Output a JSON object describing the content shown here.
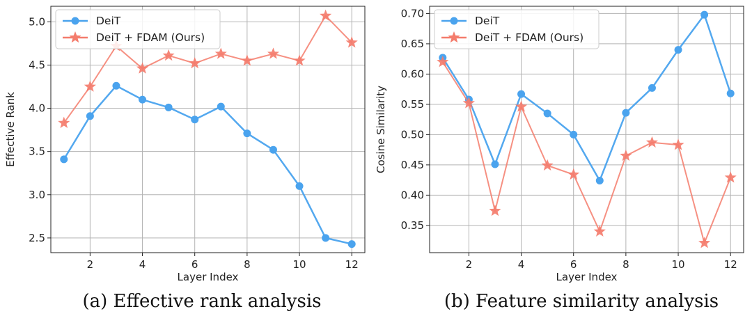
{
  "chart_data": [
    {
      "type": "line",
      "caption": "(a) Effective rank analysis",
      "title": "",
      "xlabel": "Layer Index",
      "ylabel": "Effective Rank",
      "xlim": [
        0.5,
        12.5
      ],
      "ylim": [
        2.33,
        5.18
      ],
      "xticks": [
        2,
        4,
        6,
        8,
        10,
        12
      ],
      "yticks": [
        2.5,
        3.0,
        3.5,
        4.0,
        4.5,
        5.0
      ],
      "ytick_labels": [
        "2.5",
        "3.0",
        "3.5",
        "4.0",
        "4.5",
        "5.0"
      ],
      "grid": true,
      "legend": "top-left",
      "x": [
        1,
        2,
        3,
        4,
        5,
        6,
        7,
        8,
        9,
        10,
        11,
        12
      ],
      "series": [
        {
          "name": "DeiT",
          "marker": "circle",
          "color": "#4aa3ee",
          "values": [
            3.41,
            3.91,
            4.26,
            4.1,
            4.01,
            3.87,
            4.02,
            3.71,
            3.52,
            3.1,
            2.5,
            2.43
          ]
        },
        {
          "name": "DeiT + FDAM (Ours)",
          "marker": "star",
          "color": "#f47c6c",
          "values": [
            3.83,
            4.25,
            4.72,
            4.46,
            4.61,
            4.52,
            4.63,
            4.55,
            4.63,
            4.55,
            5.07,
            4.76
          ]
        }
      ]
    },
    {
      "type": "line",
      "caption": "(b) Feature similarity analysis",
      "title": "",
      "xlabel": "Layer Index",
      "ylabel": "Cosine Similarity",
      "xlim": [
        0.5,
        12.5
      ],
      "ylim": [
        0.305,
        0.712
      ],
      "xticks": [
        2,
        4,
        6,
        8,
        10,
        12
      ],
      "yticks": [
        0.35,
        0.4,
        0.45,
        0.5,
        0.55,
        0.6,
        0.65,
        0.7
      ],
      "ytick_labels": [
        "0.35",
        "0.40",
        "0.45",
        "0.50",
        "0.55",
        "0.60",
        "0.65",
        "0.70"
      ],
      "grid": true,
      "legend": "top-left",
      "x": [
        1,
        2,
        3,
        4,
        5,
        6,
        7,
        8,
        9,
        10,
        11,
        12
      ],
      "series": [
        {
          "name": "DeiT",
          "marker": "circle",
          "color": "#4aa3ee",
          "values": [
            0.627,
            0.558,
            0.451,
            0.567,
            0.535,
            0.5,
            0.424,
            0.536,
            0.577,
            0.64,
            0.698,
            0.568
          ]
        },
        {
          "name": "DeiT + FDAM (Ours)",
          "marker": "star",
          "color": "#f47c6c",
          "values": [
            0.62,
            0.552,
            0.374,
            0.546,
            0.449,
            0.434,
            0.34,
            0.465,
            0.487,
            0.483,
            0.321,
            0.429
          ]
        }
      ]
    }
  ]
}
